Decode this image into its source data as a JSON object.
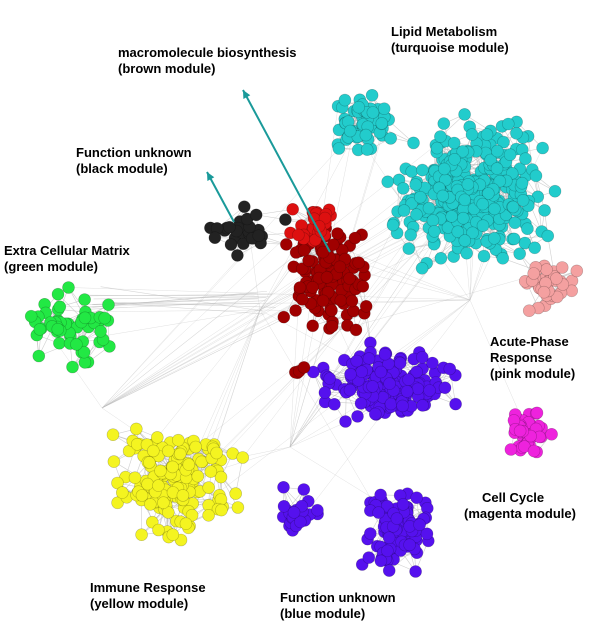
{
  "modules": [
    {
      "id": "lipid",
      "color": "#22cccc",
      "line1": "Lipid Metabolism",
      "line2": "(turquoise module)"
    },
    {
      "id": "macro",
      "color": "#a00000",
      "line1": "macromolecule biosynthesis",
      "line2": "(brown module)"
    },
    {
      "id": "unknown-black",
      "color": "#222222",
      "line1": "Function unknown",
      "line2": "(black module)"
    },
    {
      "id": "ecm",
      "color": "#22e844",
      "line1": "Extra Cellular Matrix",
      "line2": "(green module)"
    },
    {
      "id": "acute",
      "color": "#f4a0a0",
      "line1": "Acute-Phase",
      "line2": "Response",
      "line3": "(pink module)"
    },
    {
      "id": "cellcycle",
      "color": "#ee22dd",
      "line1": "Cell Cycle",
      "line2": "(magenta module)"
    },
    {
      "id": "immune",
      "color": "#f4f420",
      "line1": "Immune Response",
      "line2": "(yellow module)"
    },
    {
      "id": "unknown-blue",
      "color": "#5511ee",
      "line1": "Function unknown",
      "line2": "(blue module)"
    }
  ],
  "colors": {
    "red": "#dd1010",
    "edge": "#bbbbbb",
    "arrow": "#1a9a9a"
  }
}
